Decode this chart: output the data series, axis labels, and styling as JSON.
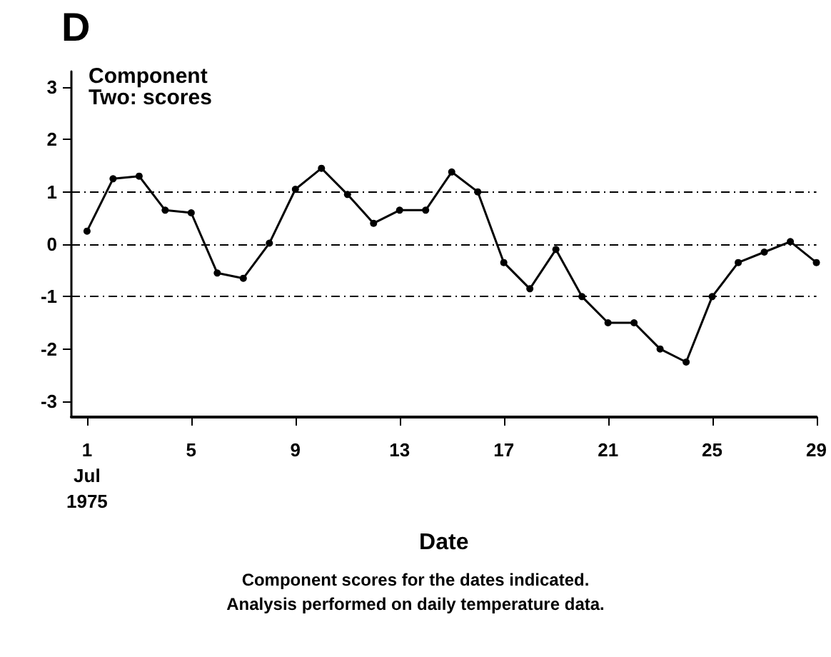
{
  "chart_data": {
    "type": "line",
    "title": "D",
    "ylabel": "Component\nTwo: scores",
    "xlabel": "Date",
    "annotations": [
      "Component scores for the dates indicated.",
      "Analysis performed on daily temperature data."
    ],
    "x": [
      1,
      2,
      3,
      4,
      5,
      6,
      7,
      8,
      9,
      10,
      11,
      12,
      13,
      14,
      15,
      16,
      17,
      18,
      19,
      20,
      21,
      22,
      23,
      24,
      25,
      26,
      27,
      28,
      29
    ],
    "series": [
      {
        "color": "#000000",
        "values": [
          0.25,
          1.25,
          1.3,
          0.65,
          0.6,
          -0.55,
          -0.65,
          0.02,
          1.05,
          1.45,
          0.95,
          0.4,
          0.65,
          0.65,
          1.38,
          1.0,
          -0.35,
          -0.85,
          -0.1,
          -1.0,
          -1.5,
          -1.5,
          -2.0,
          -2.25,
          -1.0,
          -0.35,
          -0.15,
          0.05,
          -0.35
        ]
      }
    ],
    "xlim": [
      0.4,
      29
    ],
    "xticks": [
      {
        "value": 1,
        "label": "1\nJul\n1975"
      },
      5,
      9,
      13,
      17,
      21,
      25,
      29
    ],
    "ylim": [
      -3.3,
      3.3
    ],
    "yticks": [
      -3,
      -2,
      -1,
      0,
      1,
      2,
      3
    ],
    "ref_lines": [
      {
        "axis": "y",
        "value": 1,
        "color": "#000000",
        "line_style": "dashed"
      },
      {
        "axis": "y",
        "value": 0,
        "color": "#000000",
        "line_style": "dashed"
      },
      {
        "axis": "y",
        "value": -1,
        "color": "#000000",
        "line_style": "dashed"
      }
    ],
    "grid": false,
    "marker": "circle",
    "line_style": "solid"
  }
}
